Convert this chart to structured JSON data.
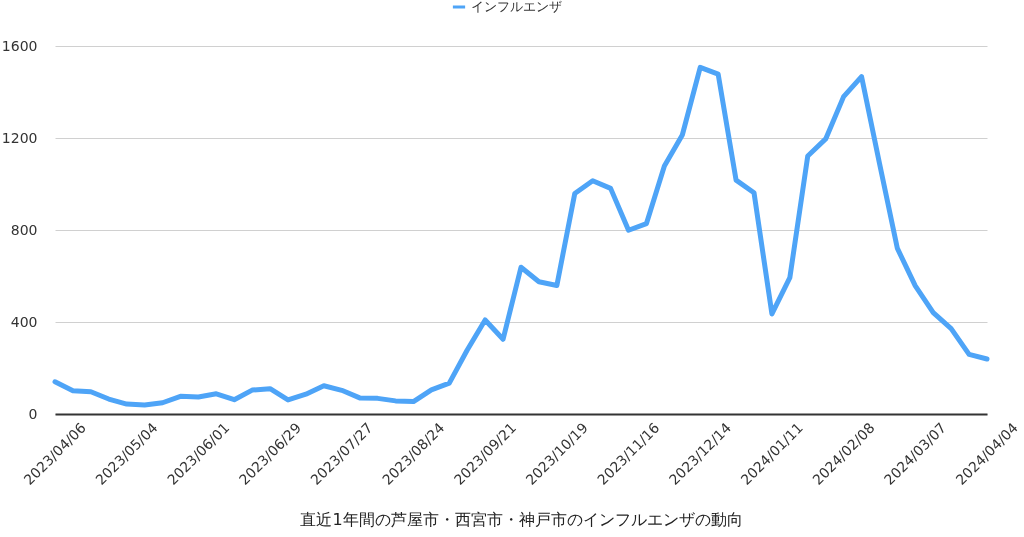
{
  "chart_data": {
    "type": "line",
    "xlabel": "直近1年間の芦屋市・西宮市・神戸市のインフルエンザの動向",
    "categories": [
      "2023/04/06",
      null,
      null,
      null,
      "2023/05/04",
      null,
      null,
      null,
      "2023/06/01",
      null,
      null,
      null,
      "2023/06/29",
      null,
      null,
      null,
      "2023/07/27",
      null,
      null,
      null,
      "2023/08/24",
      null,
      null,
      null,
      "2023/09/21",
      null,
      null,
      null,
      "2023/10/19",
      null,
      null,
      null,
      "2023/11/16",
      null,
      null,
      null,
      "2023/12/14",
      null,
      null,
      null,
      "2024/01/11",
      null,
      null,
      null,
      "2024/02/08",
      null,
      null,
      null,
      "2024/03/07",
      null,
      null,
      null,
      "2024/04/04"
    ],
    "series": [
      {
        "name": "インフルエンザ",
        "color": "#4ea4f7",
        "values": [
          140,
          101,
          97,
          65,
          43,
          39,
          49,
          77,
          74,
          88,
          62,
          104,
          110,
          61,
          86,
          123,
          103,
          70,
          68,
          57,
          54,
          105,
          134,
          278,
          409,
          325,
          638,
          575,
          559,
          959,
          1014,
          981,
          799,
          828,
          1078,
          1213,
          1507,
          1478,
          1017,
          962,
          435,
          593,
          1122,
          1196,
          1380,
          1467,
          1090,
          720,
          557,
          441,
          371,
          259,
          239
        ]
      }
    ],
    "ylim": [
      0,
      1600
    ],
    "yticks": [
      0,
      400,
      800,
      1200,
      1600
    ],
    "grid": "y",
    "legend": "top",
    "line_style": "solid"
  }
}
